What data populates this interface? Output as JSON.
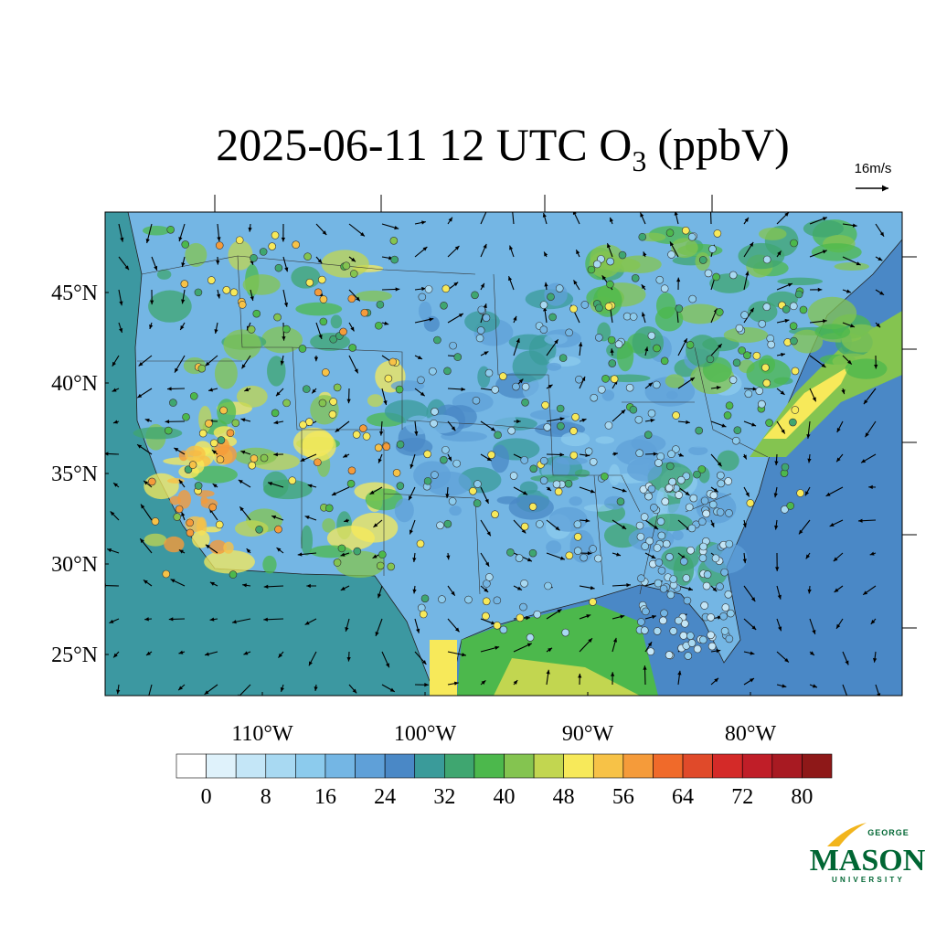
{
  "title": {
    "main": "2025-06-11 12 UTC O",
    "subscript": "3",
    "suffix": "(ppbV)"
  },
  "vector_reference": "16m/s",
  "map": {
    "lat_ticks": [
      {
        "value": 45,
        "label": "45°N"
      },
      {
        "value": 40,
        "label": "40°N"
      },
      {
        "value": 35,
        "label": "35°N"
      },
      {
        "value": 30,
        "label": "30°N"
      },
      {
        "value": 25,
        "label": "25°N"
      }
    ],
    "lon_ticks": [
      {
        "value": -110,
        "label": "110°W"
      },
      {
        "value": -100,
        "label": "100°W"
      },
      {
        "value": -90,
        "label": "90°W"
      },
      {
        "value": -80,
        "label": "80°W"
      }
    ]
  },
  "colorbar": {
    "colors": [
      "#ffffff",
      "#dff2fb",
      "#c4e6f7",
      "#a8d9f2",
      "#8ccbed",
      "#74b6e4",
      "#5fa0d8",
      "#4a88c6",
      "#3a9b9a",
      "#3fa670",
      "#4cb84c",
      "#84c450",
      "#c2d650",
      "#f7e95a",
      "#f7c247",
      "#f59b3a",
      "#f06a2a",
      "#e04a2a",
      "#d42a28",
      "#c01e28",
      "#a81a22",
      "#8e1818"
    ],
    "labels": [
      0,
      8,
      16,
      24,
      32,
      40,
      48,
      56,
      64,
      72,
      80
    ]
  },
  "logo": {
    "top": "GEORGE",
    "main": "MASON",
    "bottom": "UNIVERSITY"
  }
}
